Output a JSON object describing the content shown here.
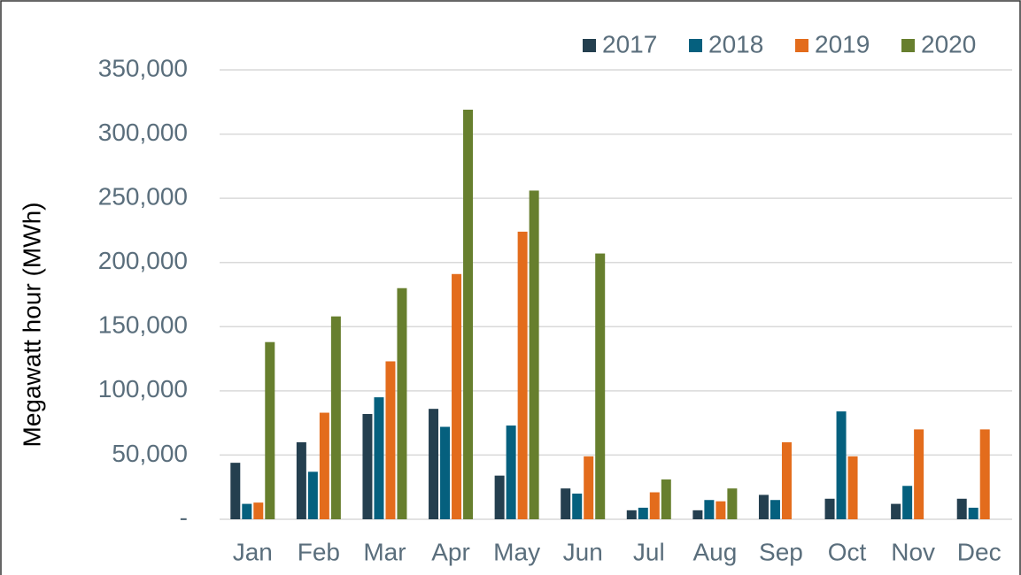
{
  "chart_data": {
    "type": "bar",
    "y_label": "Megawatt hour (MWh)",
    "categories": [
      "Jan",
      "Feb",
      "Mar",
      "Apr",
      "May",
      "Jun",
      "Jul",
      "Aug",
      "Sep",
      "Oct",
      "Nov",
      "Dec"
    ],
    "series": [
      {
        "name": "2017",
        "color": "#243f4f",
        "values": [
          44000,
          60000,
          82000,
          86000,
          34000,
          24000,
          7000,
          7000,
          19000,
          16000,
          12000,
          16000
        ]
      },
      {
        "name": "2018",
        "color": "#05607e",
        "values": [
          12000,
          37000,
          95000,
          72000,
          73000,
          20000,
          9000,
          15000,
          15000,
          84000,
          26000,
          9000
        ]
      },
      {
        "name": "2019",
        "color": "#e36c1c",
        "values": [
          13000,
          83000,
          123000,
          191000,
          224000,
          49000,
          21000,
          14000,
          60000,
          49000,
          70000,
          70000
        ]
      },
      {
        "name": "2020",
        "color": "#677f2e",
        "values": [
          138000,
          158000,
          180000,
          319000,
          256000,
          207000,
          31000,
          24000,
          null,
          null,
          null,
          null
        ]
      }
    ],
    "ylim": [
      0,
      350000
    ],
    "yticks": [
      {
        "value": 0,
        "label": "-"
      },
      {
        "value": 50000,
        "label": "50,000"
      },
      {
        "value": 100000,
        "label": "100,000"
      },
      {
        "value": 150000,
        "label": "150,000"
      },
      {
        "value": 200000,
        "label": "200,000"
      },
      {
        "value": 250000,
        "label": "250,000"
      },
      {
        "value": 300000,
        "label": "300,000"
      },
      {
        "value": 350000,
        "label": "350,000"
      }
    ],
    "grid": true,
    "legend": "top-right"
  }
}
